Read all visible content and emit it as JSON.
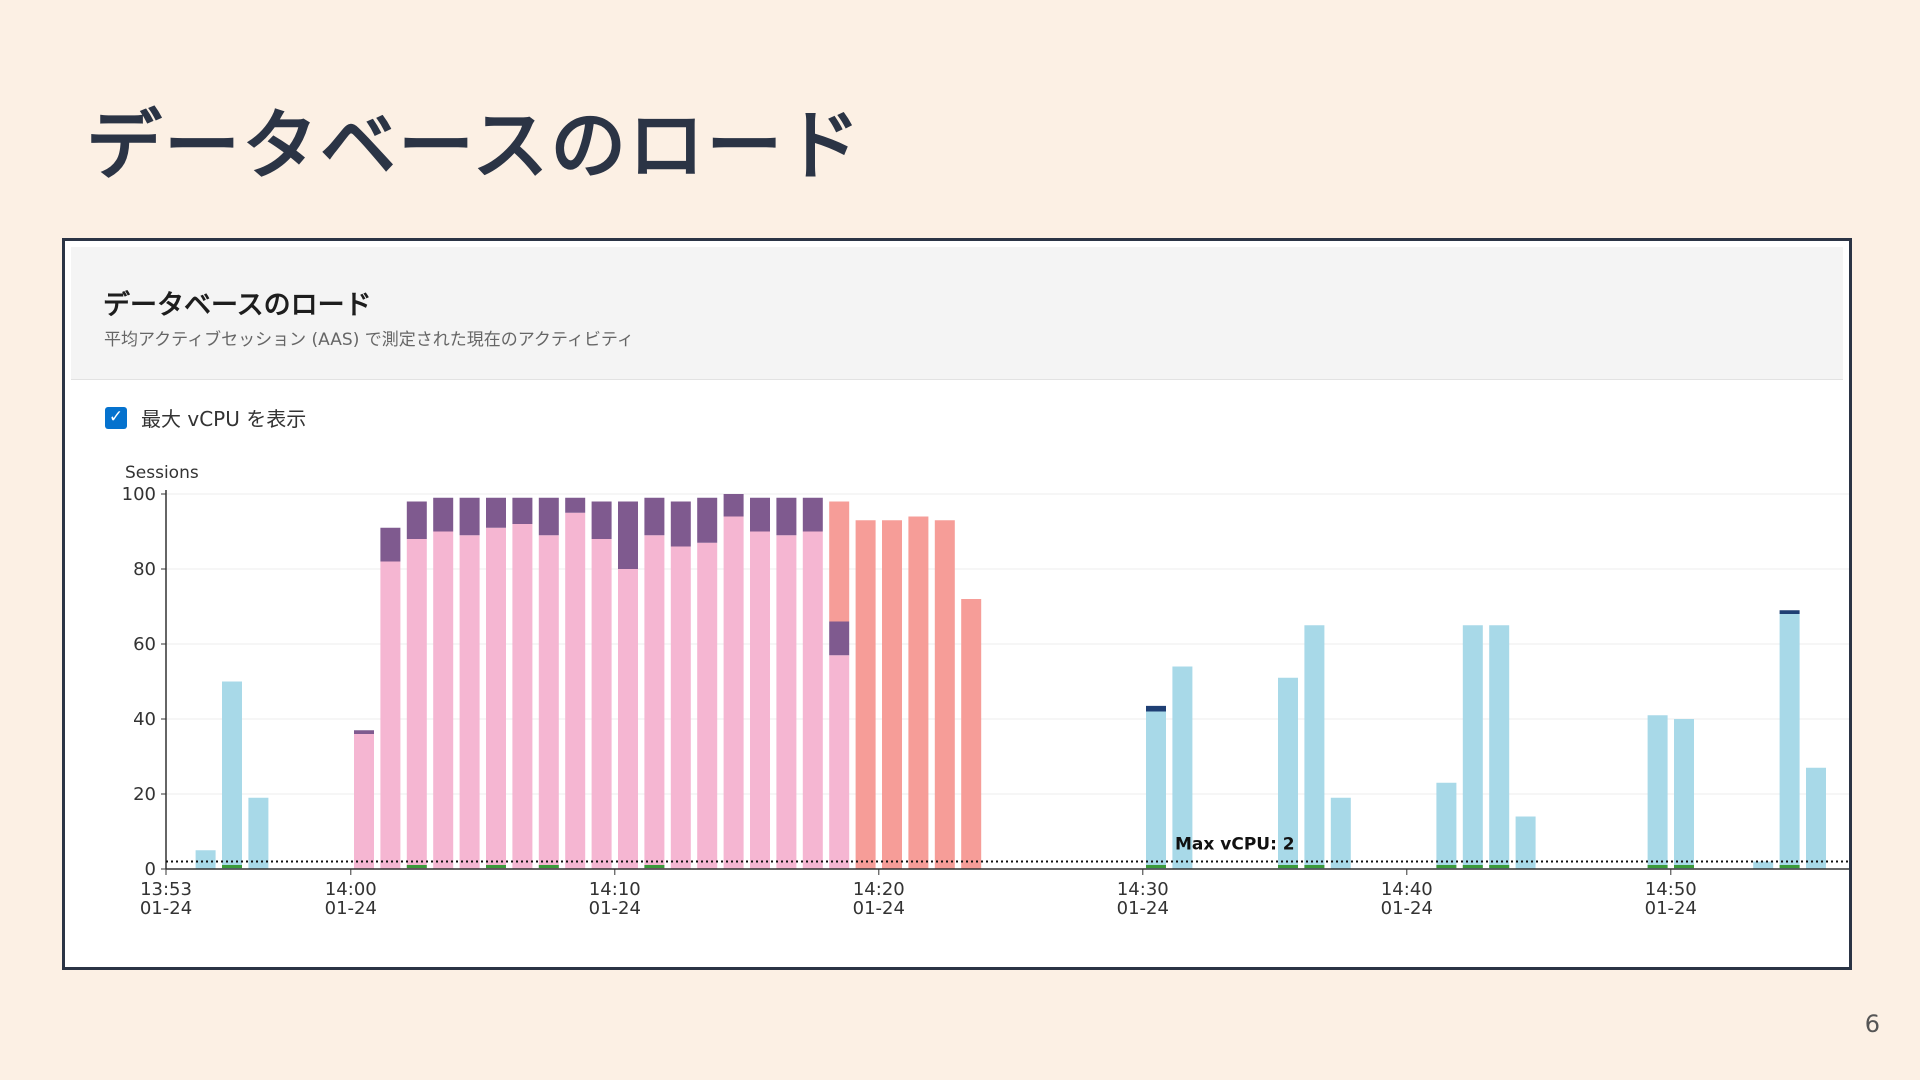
{
  "slide": {
    "title": "データベースのロード",
    "page_number": "6"
  },
  "panel": {
    "title": "データベースのロード",
    "subtitle": "平均アクティブセッション (AAS) で測定された現在のアクティビティ"
  },
  "controls": {
    "show_max_vcpu_label": "最大 vCPU を表示",
    "show_max_vcpu_checked": true
  },
  "colors": {
    "light_blue": "#a8d9e8",
    "pink": "#f5b6d2",
    "purple": "#7f5a8f",
    "salmon": "#f69d98",
    "navy": "#1f3f74",
    "green": "#3a9a3a"
  },
  "chart_data": {
    "type": "bar",
    "stacked": true,
    "ylabel": "Sessions",
    "ylim": [
      0,
      100
    ],
    "yticks": [
      0,
      20,
      40,
      60,
      80,
      100
    ],
    "x_range_min": [
      0,
      62
    ],
    "xticks": [
      {
        "min": 0,
        "label1": "13:53",
        "label2": "01-24"
      },
      {
        "min": 7,
        "label1": "14:00",
        "label2": "01-24"
      },
      {
        "min": 17,
        "label1": "14:10",
        "label2": "01-24"
      },
      {
        "min": 27,
        "label1": "14:20",
        "label2": "01-24"
      },
      {
        "min": 37,
        "label1": "14:30",
        "label2": "01-24"
      },
      {
        "min": 47,
        "label1": "14:40",
        "label2": "01-24"
      },
      {
        "min": 57,
        "label1": "14:50",
        "label2": "01-24"
      }
    ],
    "reference_line": {
      "value": 2,
      "label": "Max vCPU: 2"
    },
    "series": [
      {
        "color_key": "light_blue",
        "points": [
          [
            1.5,
            5
          ],
          [
            2.5,
            50
          ],
          [
            3.5,
            19
          ],
          [
            37.5,
            42
          ],
          [
            38.5,
            54
          ],
          [
            42.5,
            51
          ],
          [
            43.5,
            65
          ],
          [
            44.5,
            19
          ],
          [
            48.5,
            23
          ],
          [
            49.5,
            65
          ],
          [
            50.5,
            65
          ],
          [
            51.5,
            14
          ],
          [
            56.5,
            41
          ],
          [
            57.5,
            40
          ],
          [
            60.5,
            2
          ],
          [
            61.5,
            68
          ],
          [
            62.5,
            27
          ]
        ]
      },
      {
        "color_key": "pink",
        "points": [
          [
            7.5,
            36
          ],
          [
            8.5,
            82
          ],
          [
            9.5,
            88
          ],
          [
            10.5,
            90
          ],
          [
            11.5,
            89
          ],
          [
            12.5,
            91
          ],
          [
            13.5,
            92
          ],
          [
            14.5,
            89
          ],
          [
            15.5,
            95
          ],
          [
            16.5,
            88
          ],
          [
            17.5,
            80
          ],
          [
            18.5,
            89
          ],
          [
            19.5,
            86
          ],
          [
            20.5,
            87
          ],
          [
            21.5,
            94
          ],
          [
            22.5,
            90
          ],
          [
            23.5,
            89
          ],
          [
            24.5,
            90
          ],
          [
            25.5,
            57
          ]
        ]
      },
      {
        "color_key": "purple",
        "points": [
          [
            7.5,
            1
          ],
          [
            8.5,
            9
          ],
          [
            9.5,
            10
          ],
          [
            10.5,
            9
          ],
          [
            11.5,
            10
          ],
          [
            12.5,
            8
          ],
          [
            13.5,
            7
          ],
          [
            14.5,
            10
          ],
          [
            15.5,
            4
          ],
          [
            16.5,
            10
          ],
          [
            17.5,
            18
          ],
          [
            18.5,
            10
          ],
          [
            19.5,
            12
          ],
          [
            20.5,
            12
          ],
          [
            21.5,
            6
          ],
          [
            22.5,
            9
          ],
          [
            23.5,
            10
          ],
          [
            24.5,
            9
          ],
          [
            25.5,
            9
          ]
        ]
      },
      {
        "color_key": "salmon",
        "points": [
          [
            25.5,
            32
          ],
          [
            26.5,
            93
          ],
          [
            27.5,
            93
          ],
          [
            28.5,
            94
          ],
          [
            29.5,
            93
          ],
          [
            30.5,
            72
          ]
        ]
      },
      {
        "color_key": "navy",
        "points": [
          [
            37.5,
            1.5
          ],
          [
            61.5,
            1
          ]
        ]
      }
    ]
  }
}
